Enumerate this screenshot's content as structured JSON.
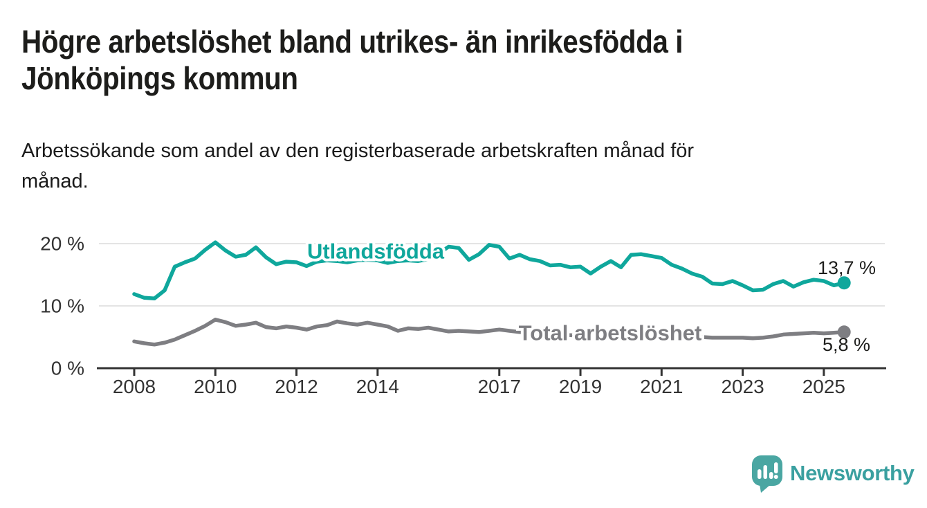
{
  "header": {
    "title": "Högre arbetslöshet bland utrikes- än inrikesfödda i Jönköpings kommun",
    "title_lines": [
      "Högre arbetslöshet bland utrikes- än inrikesfödda i",
      "Jönköpings kommun"
    ],
    "subtitle": "Arbetssökande som andel av den registerbaserade arbetskraften månad för månad.",
    "subtitle_lines": [
      "Arbetssökande som andel av den registerbaserade arbetskraften månad för",
      "månad."
    ]
  },
  "chart_data": {
    "type": "line",
    "x_unit": "year (quarterly points)",
    "x_start": 2008.0,
    "x_step": 0.25,
    "x_end": 2025.5,
    "xticks": [
      2008,
      2010,
      2012,
      2014,
      2017,
      2019,
      2021,
      2023,
      2025
    ],
    "yticks": [
      {
        "label": "20 %",
        "value": 20
      },
      {
        "label": "10 %",
        "value": 10
      },
      {
        "label": "0 %",
        "value": 0
      }
    ],
    "ylim": [
      0,
      21.5
    ],
    "grid": "horizontal",
    "series": [
      {
        "name": "Utlandsfödda",
        "color": "#0fa79c",
        "end_label": "13,7 %",
        "end_value": 13.7,
        "values": [
          11.9,
          11.3,
          11.2,
          12.5,
          16.3,
          17.0,
          17.6,
          19.0,
          20.2,
          18.9,
          17.9,
          18.2,
          19.4,
          17.8,
          16.7,
          17.1,
          17.0,
          16.4,
          17.1,
          17.3,
          17.2,
          17.0,
          17.3,
          17.4,
          17.3,
          16.9,
          17.2,
          17.3,
          17.2,
          17.5,
          18.4,
          19.5,
          19.3,
          17.4,
          18.3,
          19.8,
          19.5,
          17.6,
          18.2,
          17.5,
          17.2,
          16.5,
          16.6,
          16.2,
          16.3,
          15.2,
          16.3,
          17.2,
          16.2,
          18.2,
          18.3,
          18.0,
          17.7,
          16.6,
          16.0,
          15.2,
          14.7,
          13.6,
          13.5,
          14.0,
          13.3,
          12.5,
          12.6,
          13.5,
          14.0,
          13.1,
          13.8,
          14.2,
          14.0,
          13.3,
          13.7
        ]
      },
      {
        "name": "Total arbetslöshet",
        "color": "#7e7e82",
        "end_label": "5,8 %",
        "end_value": 5.8,
        "values": [
          4.3,
          4.0,
          3.8,
          4.1,
          4.6,
          5.3,
          6.0,
          6.8,
          7.8,
          7.4,
          6.8,
          7.0,
          7.3,
          6.6,
          6.4,
          6.7,
          6.5,
          6.2,
          6.7,
          6.9,
          7.5,
          7.2,
          7.0,
          7.3,
          7.0,
          6.7,
          6.0,
          6.4,
          6.3,
          6.5,
          6.2,
          5.9,
          6.0,
          5.9,
          5.8,
          6.0,
          6.2,
          6.0,
          5.8,
          5.7,
          5.6,
          5.4,
          5.3,
          5.3,
          5.2,
          5.1,
          5.3,
          5.5,
          5.4,
          6.1,
          6.2,
          6.0,
          5.8,
          5.6,
          5.4,
          5.2,
          5.0,
          4.9,
          4.9,
          4.9,
          4.9,
          4.8,
          4.9,
          5.1,
          5.4,
          5.5,
          5.6,
          5.7,
          5.6,
          5.7,
          5.8
        ]
      }
    ]
  },
  "footer": {
    "brand": "Newsworthy"
  },
  "colors": {
    "accent_teal": "#0fa79c",
    "series_gray": "#7e7e82",
    "text_dark": "#1d1d1b",
    "axis_text": "#333333",
    "gridline": "#dcdcdc",
    "axis_line": "#333333",
    "logo_teal": "#4aa6a2",
    "wordmark_teal": "#3aa0a0",
    "background": "#ffffff"
  }
}
